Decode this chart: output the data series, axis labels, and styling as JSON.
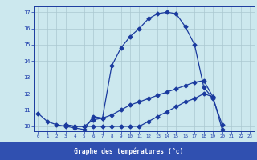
{
  "xlabel": "Graphe des températures (°c)",
  "hours": [
    0,
    1,
    2,
    3,
    4,
    5,
    6,
    7,
    8,
    9,
    10,
    11,
    12,
    13,
    14,
    15,
    16,
    17,
    18,
    19,
    20,
    21,
    22,
    23
  ],
  "line1": [
    10.8,
    10.3,
    10.1,
    10.0,
    9.9,
    9.8,
    10.6,
    10.5,
    13.7,
    14.8,
    15.5,
    16.0,
    16.6,
    16.9,
    17.0,
    16.9,
    16.1,
    15.0,
    12.4,
    11.7,
    10.1,
    null,
    null,
    null
  ],
  "line2": [
    null,
    null,
    null,
    10.1,
    10.0,
    10.0,
    10.0,
    10.0,
    10.0,
    10.0,
    10.0,
    10.0,
    10.3,
    10.6,
    10.9,
    11.2,
    11.5,
    11.7,
    12.0,
    11.8,
    9.8,
    null,
    null,
    null
  ],
  "line3": [
    null,
    null,
    null,
    10.1,
    10.0,
    10.0,
    10.4,
    10.5,
    10.7,
    11.0,
    11.3,
    11.5,
    11.7,
    11.9,
    12.1,
    12.3,
    12.5,
    12.7,
    12.8,
    11.8,
    null,
    null,
    null,
    null
  ],
  "line_color": "#1a3a9e",
  "bg_color": "#cce8ee",
  "grid_color": "#aac8d0",
  "bar_color": "#3050b0",
  "text_color": "#1a3aaa",
  "xlim": [
    -0.5,
    23.5
  ],
  "ylim": [
    9.7,
    17.35
  ],
  "yticks": [
    10,
    11,
    12,
    13,
    14,
    15,
    16,
    17
  ],
  "xticks": [
    0,
    1,
    2,
    3,
    4,
    5,
    6,
    7,
    8,
    9,
    10,
    11,
    12,
    13,
    14,
    15,
    16,
    17,
    18,
    19,
    20,
    21,
    22,
    23
  ]
}
